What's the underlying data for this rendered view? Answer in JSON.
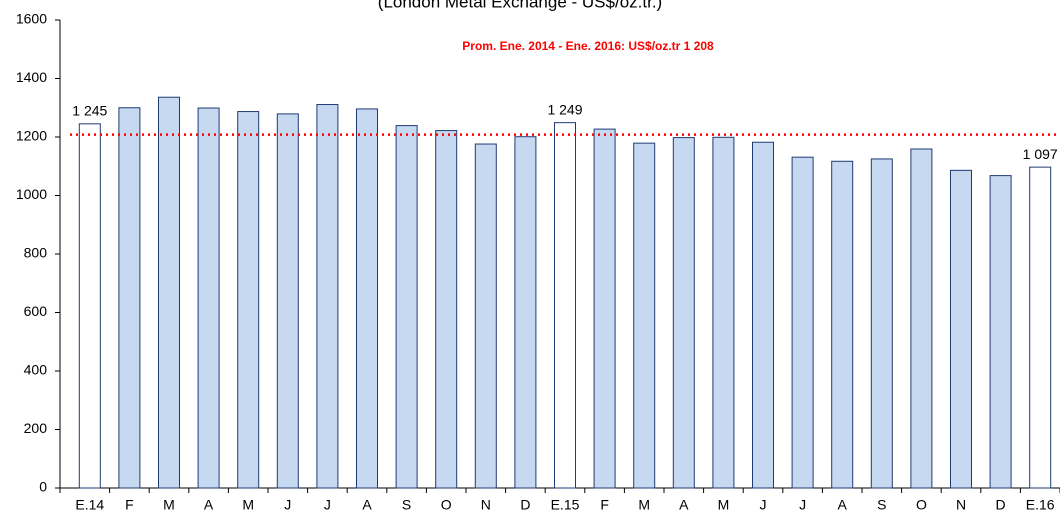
{
  "chart_data": {
    "type": "bar",
    "subtitle": "(London Metal Exchange - US$/oz.tr.)",
    "annotation": "Prom. Ene. 2014 - Ene. 2016: US$/oz.tr 1 208",
    "reference_line": {
      "value": 1208,
      "color": "#ff0000"
    },
    "categories": [
      "E.14",
      "F",
      "M",
      "A",
      "M",
      "J",
      "J",
      "A",
      "S",
      "O",
      "N",
      "D",
      "E.15",
      "F",
      "M",
      "A",
      "M",
      "J",
      "J",
      "A",
      "S",
      "O",
      "N",
      "D",
      "E.16"
    ],
    "values": [
      1245,
      1300,
      1336,
      1299,
      1287,
      1279,
      1311,
      1296,
      1239,
      1222,
      1176,
      1201,
      1249,
      1227,
      1179,
      1198,
      1199,
      1182,
      1131,
      1117,
      1125,
      1159,
      1086,
      1068,
      1097
    ],
    "value_labels": [
      "1 245",
      null,
      null,
      null,
      null,
      null,
      null,
      null,
      null,
      null,
      null,
      null,
      "1 249",
      null,
      null,
      null,
      null,
      null,
      null,
      null,
      null,
      null,
      null,
      null,
      "1 097"
    ],
    "colors": [
      "#ffffff",
      "#c6d9f1",
      "#c6d9f1",
      "#c6d9f1",
      "#c6d9f1",
      "#c6d9f1",
      "#c6d9f1",
      "#c6d9f1",
      "#c6d9f1",
      "#c6d9f1",
      "#c6d9f1",
      "#c6d9f1",
      "#ffffff",
      "#c6d9f1",
      "#c6d9f1",
      "#c6d9f1",
      "#c6d9f1",
      "#c6d9f1",
      "#c6d9f1",
      "#c6d9f1",
      "#c6d9f1",
      "#c6d9f1",
      "#c6d9f1",
      "#c6d9f1",
      "#ffffff"
    ],
    "edge_color": "#1f3b73",
    "ylim": [
      0,
      1600
    ],
    "yticks": [
      0,
      200,
      400,
      600,
      800,
      1000,
      1200,
      1400,
      1600
    ],
    "grid": false
  }
}
